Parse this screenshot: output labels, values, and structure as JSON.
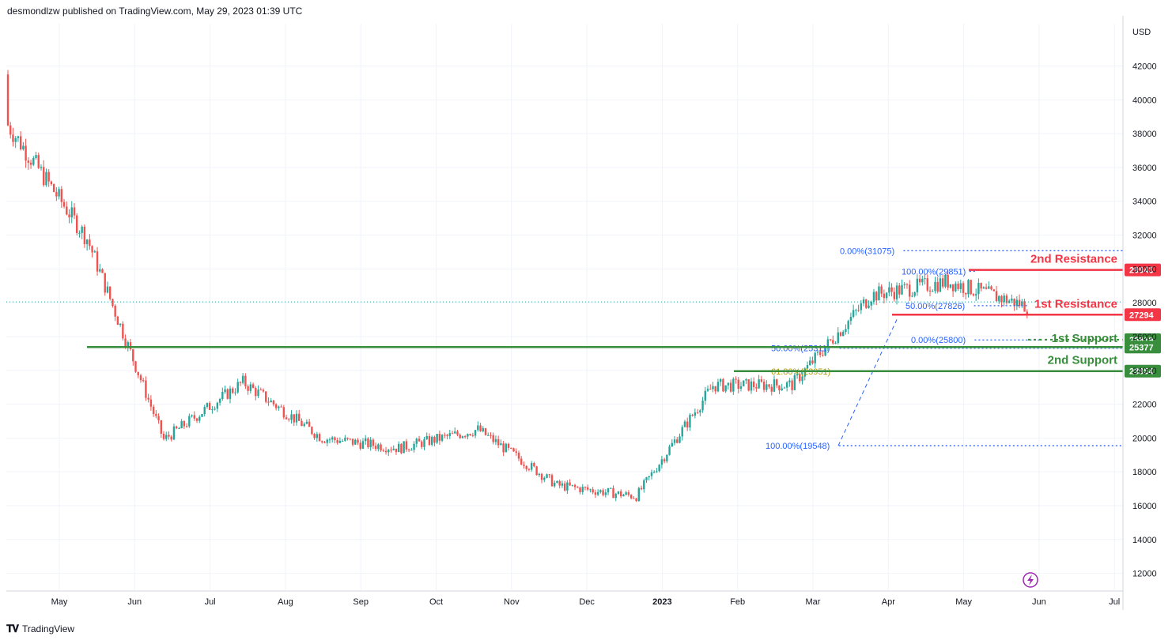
{
  "header": {
    "published": "desmondlzw published on TradingView.com, May 29, 2023 01:39 UTC"
  },
  "footer": {
    "brand": "TradingView"
  },
  "colors": {
    "up": "#26a69a",
    "down": "#ef5350",
    "resistance": "#f23645",
    "support": "#388e3c",
    "fib": "#2962ff",
    "fib618": "#b89b00",
    "axis_line": "#d1d4dc",
    "grid": "#f0f3fa"
  },
  "chart_data": {
    "type": "candlestick",
    "currency_label": "USD",
    "y_ticks": [
      12000,
      14000,
      16000,
      18000,
      20000,
      22000,
      24000,
      26000,
      28000,
      30000,
      32000,
      34000,
      36000,
      38000,
      40000,
      42000
    ],
    "ylim": [
      11000,
      44500
    ],
    "x_tick_labels": [
      {
        "label": "May",
        "month_index": 0
      },
      {
        "label": "Jun",
        "month_index": 1
      },
      {
        "label": "Jul",
        "month_index": 2
      },
      {
        "label": "Aug",
        "month_index": 3
      },
      {
        "label": "Sep",
        "month_index": 4
      },
      {
        "label": "Oct",
        "month_index": 5
      },
      {
        "label": "Nov",
        "month_index": 6
      },
      {
        "label": "Dec",
        "month_index": 7
      },
      {
        "label": "2023",
        "month_index": 8,
        "bold": true
      },
      {
        "label": "Feb",
        "month_index": 9
      },
      {
        "label": "Mar",
        "month_index": 10
      },
      {
        "label": "Apr",
        "month_index": 11
      },
      {
        "label": "May",
        "month_index": 12
      },
      {
        "label": "Jun",
        "month_index": 13
      },
      {
        "label": "Jul",
        "month_index": 14
      }
    ],
    "price_path_monthly_close": [
      {
        "month": "Apr 2022",
        "close": 38500
      },
      {
        "month": "May 2022",
        "close": 31800
      },
      {
        "month": "Jun 2022",
        "close": 19900
      },
      {
        "month": "Jul 2022",
        "close": 23300
      },
      {
        "month": "Aug 2022",
        "close": 20000
      },
      {
        "month": "Sep 2022",
        "close": 19400
      },
      {
        "month": "Oct 2022",
        "close": 20500
      },
      {
        "month": "Nov 2022",
        "close": 17200
      },
      {
        "month": "Dec 2022",
        "close": 16550
      },
      {
        "month": "Jan 2023",
        "close": 23100
      },
      {
        "month": "Feb 2023",
        "close": 23150
      },
      {
        "month": "Mar 2023",
        "close": 28450
      },
      {
        "month": "Apr 2023",
        "close": 29250
      },
      {
        "month": "May 2023",
        "close": 27800
      }
    ],
    "last_price": 28050,
    "levels": [
      {
        "name": "2nd Resistance",
        "price": 29943,
        "kind": "resistance",
        "tag": "29943"
      },
      {
        "name": "1st Resistance",
        "price": 27294,
        "kind": "resistance",
        "tag": "27294"
      },
      {
        "name": "1st Support",
        "price": 25819,
        "kind": "support",
        "tag": "25819"
      },
      {
        "name": "",
        "price": 25377,
        "kind": "support",
        "tag": "25377"
      },
      {
        "name": "2nd Support",
        "price": 23954,
        "kind": "support",
        "tag": "23954"
      }
    ],
    "fib_labels": [
      {
        "text": "0.00%(31075)",
        "price": 31075
      },
      {
        "text": "100.00%(29851)",
        "price": 29851
      },
      {
        "text": "50.00%(27826)",
        "price": 27826
      },
      {
        "text": "0.00%(25800)",
        "price": 25800
      },
      {
        "text": "50.00%(25311)",
        "price": 25311
      },
      {
        "text": "61.80%(23951)",
        "price": 23951
      },
      {
        "text": "100.00%(19548)",
        "price": 19548
      }
    ]
  }
}
